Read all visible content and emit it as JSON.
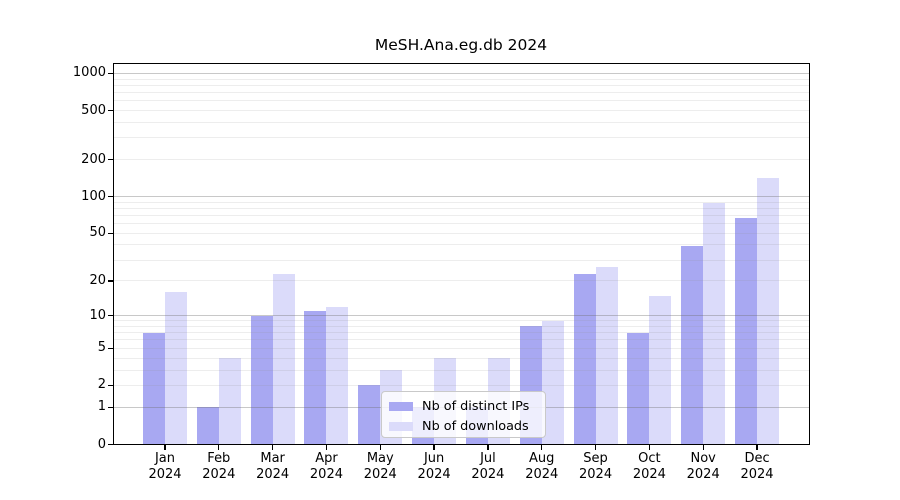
{
  "title": "MeSH.Ana.eg.db 2024",
  "chart_data": {
    "type": "bar",
    "title": "MeSH.Ana.eg.db 2024",
    "categories": [
      "Jan 2024",
      "Feb 2024",
      "Mar 2024",
      "Apr 2024",
      "May 2024",
      "Jun 2024",
      "Jul 2024",
      "Aug 2024",
      "Sep 2024",
      "Oct 2024",
      "Nov 2024",
      "Dec 2024"
    ],
    "series": [
      {
        "name": "Nb of distinct IPs",
        "color": "#a8a8f2",
        "values": [
          7,
          1,
          10,
          11,
          2,
          1,
          1,
          8,
          23,
          7,
          39,
          67
        ]
      },
      {
        "name": "Nb of downloads",
        "color": "#dbdbfa",
        "values": [
          16,
          4,
          23,
          12,
          3,
          4,
          4,
          9,
          26,
          15,
          88,
          143
        ]
      }
    ],
    "xlabel": "",
    "ylabel": "",
    "yscale": "log10(1+y)",
    "ylim": [
      0,
      1000
    ],
    "ytick_labels": [
      0,
      1,
      2,
      5,
      10,
      20,
      50,
      100,
      200,
      500,
      1000
    ],
    "grid": "on",
    "legend_position": "lower center"
  },
  "legend": {
    "items": [
      {
        "label": "Nb of distinct IPs",
        "color": "#a8a8f2"
      },
      {
        "label": "Nb of downloads",
        "color": "#dbdbfa"
      }
    ]
  }
}
